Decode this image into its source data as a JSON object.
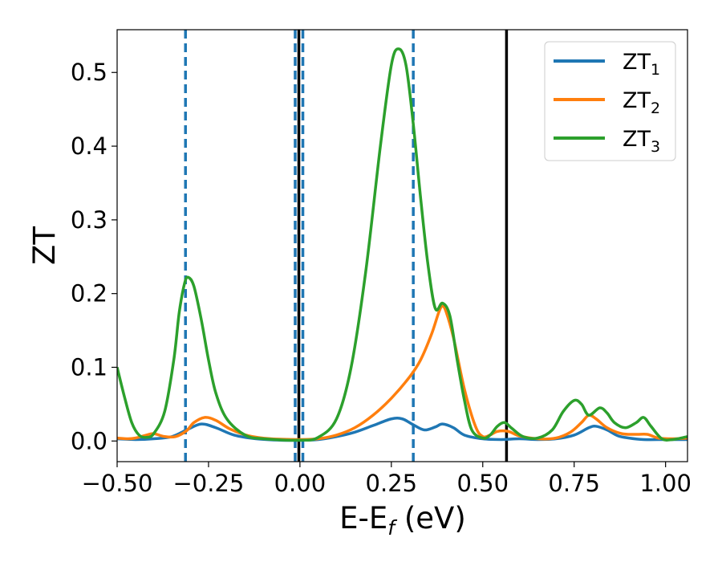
{
  "chart_data": {
    "type": "line",
    "xlabel": "E-E",
    "xlabel_sub": "f",
    "xlabel_unit": " (eV)",
    "ylabel": "ZT",
    "xlim": [
      -0.5,
      1.06
    ],
    "ylim": [
      -0.028,
      0.558
    ],
    "xticks": [
      {
        "value": -0.5,
        "label": "−0.50"
      },
      {
        "value": -0.25,
        "label": "−0.25"
      },
      {
        "value": 0.0,
        "label": "0.00"
      },
      {
        "value": 0.25,
        "label": "0.25"
      },
      {
        "value": 0.5,
        "label": "0.50"
      },
      {
        "value": 0.75,
        "label": "0.75"
      },
      {
        "value": 1.0,
        "label": "1.00"
      }
    ],
    "yticks": [
      {
        "value": 0.0,
        "label": "0.0"
      },
      {
        "value": 0.1,
        "label": "0.1"
      },
      {
        "value": 0.2,
        "label": "0.2"
      },
      {
        "value": 0.3,
        "label": "0.3"
      },
      {
        "value": 0.4,
        "label": "0.4"
      },
      {
        "value": 0.5,
        "label": "0.5"
      }
    ],
    "grid": false,
    "legend_position": "top-right",
    "vlines_dashed": {
      "color": "#1f77b4",
      "x": [
        -0.313,
        -0.013,
        0.008,
        0.31
      ]
    },
    "vlines_solid": {
      "color": "#000000",
      "x": [
        -0.003,
        0.565
      ]
    },
    "series": [
      {
        "name": "ZT",
        "sub": "1",
        "color": "#1f77b4",
        "points": [
          [
            -0.5,
            0.003
          ],
          [
            -0.45,
            0.002
          ],
          [
            -0.4,
            0.003
          ],
          [
            -0.35,
            0.006
          ],
          [
            -0.31,
            0.015
          ],
          [
            -0.27,
            0.023
          ],
          [
            -0.23,
            0.018
          ],
          [
            -0.18,
            0.008
          ],
          [
            -0.12,
            0.003
          ],
          [
            -0.05,
            0.001
          ],
          [
            0.0,
            0.001
          ],
          [
            0.05,
            0.002
          ],
          [
            0.1,
            0.006
          ],
          [
            0.15,
            0.012
          ],
          [
            0.2,
            0.021
          ],
          [
            0.25,
            0.03
          ],
          [
            0.28,
            0.03
          ],
          [
            0.31,
            0.022
          ],
          [
            0.34,
            0.015
          ],
          [
            0.37,
            0.019
          ],
          [
            0.39,
            0.023
          ],
          [
            0.42,
            0.018
          ],
          [
            0.45,
            0.008
          ],
          [
            0.5,
            0.003
          ],
          [
            0.55,
            0.002
          ],
          [
            0.6,
            0.003
          ],
          [
            0.65,
            0.002
          ],
          [
            0.7,
            0.003
          ],
          [
            0.75,
            0.008
          ],
          [
            0.79,
            0.018
          ],
          [
            0.81,
            0.02
          ],
          [
            0.84,
            0.015
          ],
          [
            0.87,
            0.007
          ],
          [
            0.9,
            0.004
          ],
          [
            0.94,
            0.002
          ],
          [
            1.0,
            0.002
          ],
          [
            1.06,
            0.002
          ]
        ]
      },
      {
        "name": "ZT",
        "sub": "2",
        "color": "#ff7f0e",
        "points": [
          [
            -0.5,
            0.004
          ],
          [
            -0.47,
            0.003
          ],
          [
            -0.45,
            0.004
          ],
          [
            -0.42,
            0.008
          ],
          [
            -0.4,
            0.01
          ],
          [
            -0.37,
            0.006
          ],
          [
            -0.34,
            0.006
          ],
          [
            -0.31,
            0.014
          ],
          [
            -0.29,
            0.025
          ],
          [
            -0.26,
            0.032
          ],
          [
            -0.23,
            0.028
          ],
          [
            -0.19,
            0.016
          ],
          [
            -0.14,
            0.007
          ],
          [
            -0.08,
            0.003
          ],
          [
            0.0,
            0.002
          ],
          [
            0.05,
            0.003
          ],
          [
            0.1,
            0.008
          ],
          [
            0.15,
            0.018
          ],
          [
            0.2,
            0.035
          ],
          [
            0.25,
            0.058
          ],
          [
            0.3,
            0.087
          ],
          [
            0.33,
            0.11
          ],
          [
            0.36,
            0.145
          ],
          [
            0.38,
            0.175
          ],
          [
            0.39,
            0.183
          ],
          [
            0.4,
            0.175
          ],
          [
            0.42,
            0.14
          ],
          [
            0.45,
            0.07
          ],
          [
            0.48,
            0.02
          ],
          [
            0.5,
            0.006
          ],
          [
            0.52,
            0.008
          ],
          [
            0.54,
            0.013
          ],
          [
            0.57,
            0.013
          ],
          [
            0.6,
            0.007
          ],
          [
            0.65,
            0.003
          ],
          [
            0.7,
            0.004
          ],
          [
            0.74,
            0.012
          ],
          [
            0.77,
            0.025
          ],
          [
            0.79,
            0.035
          ],
          [
            0.81,
            0.03
          ],
          [
            0.84,
            0.018
          ],
          [
            0.88,
            0.01
          ],
          [
            0.92,
            0.009
          ],
          [
            0.95,
            0.009
          ],
          [
            0.98,
            0.004
          ],
          [
            1.02,
            0.003
          ],
          [
            1.06,
            0.004
          ]
        ]
      },
      {
        "name": "ZT",
        "sub": "3",
        "color": "#2ca02c",
        "points": [
          [
            -0.5,
            0.1
          ],
          [
            -0.48,
            0.06
          ],
          [
            -0.46,
            0.025
          ],
          [
            -0.44,
            0.008
          ],
          [
            -0.42,
            0.005
          ],
          [
            -0.4,
            0.01
          ],
          [
            -0.37,
            0.04
          ],
          [
            -0.345,
            0.11
          ],
          [
            -0.33,
            0.175
          ],
          [
            -0.315,
            0.215
          ],
          [
            -0.305,
            0.222
          ],
          [
            -0.29,
            0.21
          ],
          [
            -0.27,
            0.165
          ],
          [
            -0.25,
            0.11
          ],
          [
            -0.23,
            0.065
          ],
          [
            -0.2,
            0.03
          ],
          [
            -0.15,
            0.008
          ],
          [
            -0.1,
            0.003
          ],
          [
            0.0,
            0.001
          ],
          [
            0.05,
            0.005
          ],
          [
            0.1,
            0.03
          ],
          [
            0.14,
            0.1
          ],
          [
            0.18,
            0.23
          ],
          [
            0.22,
            0.4
          ],
          [
            0.25,
            0.51
          ],
          [
            0.27,
            0.532
          ],
          [
            0.29,
            0.51
          ],
          [
            0.31,
            0.43
          ],
          [
            0.33,
            0.33
          ],
          [
            0.35,
            0.24
          ],
          [
            0.37,
            0.18
          ],
          [
            0.39,
            0.187
          ],
          [
            0.41,
            0.17
          ],
          [
            0.43,
            0.11
          ],
          [
            0.45,
            0.055
          ],
          [
            0.47,
            0.015
          ],
          [
            0.5,
            0.004
          ],
          [
            0.52,
            0.008
          ],
          [
            0.54,
            0.02
          ],
          [
            0.56,
            0.025
          ],
          [
            0.58,
            0.017
          ],
          [
            0.61,
            0.006
          ],
          [
            0.65,
            0.004
          ],
          [
            0.69,
            0.015
          ],
          [
            0.72,
            0.04
          ],
          [
            0.75,
            0.055
          ],
          [
            0.77,
            0.05
          ],
          [
            0.79,
            0.035
          ],
          [
            0.82,
            0.045
          ],
          [
            0.84,
            0.038
          ],
          [
            0.86,
            0.025
          ],
          [
            0.89,
            0.018
          ],
          [
            0.92,
            0.025
          ],
          [
            0.94,
            0.032
          ],
          [
            0.96,
            0.02
          ],
          [
            0.99,
            0.003
          ],
          [
            1.02,
            0.002
          ],
          [
            1.06,
            0.006
          ]
        ]
      }
    ]
  }
}
